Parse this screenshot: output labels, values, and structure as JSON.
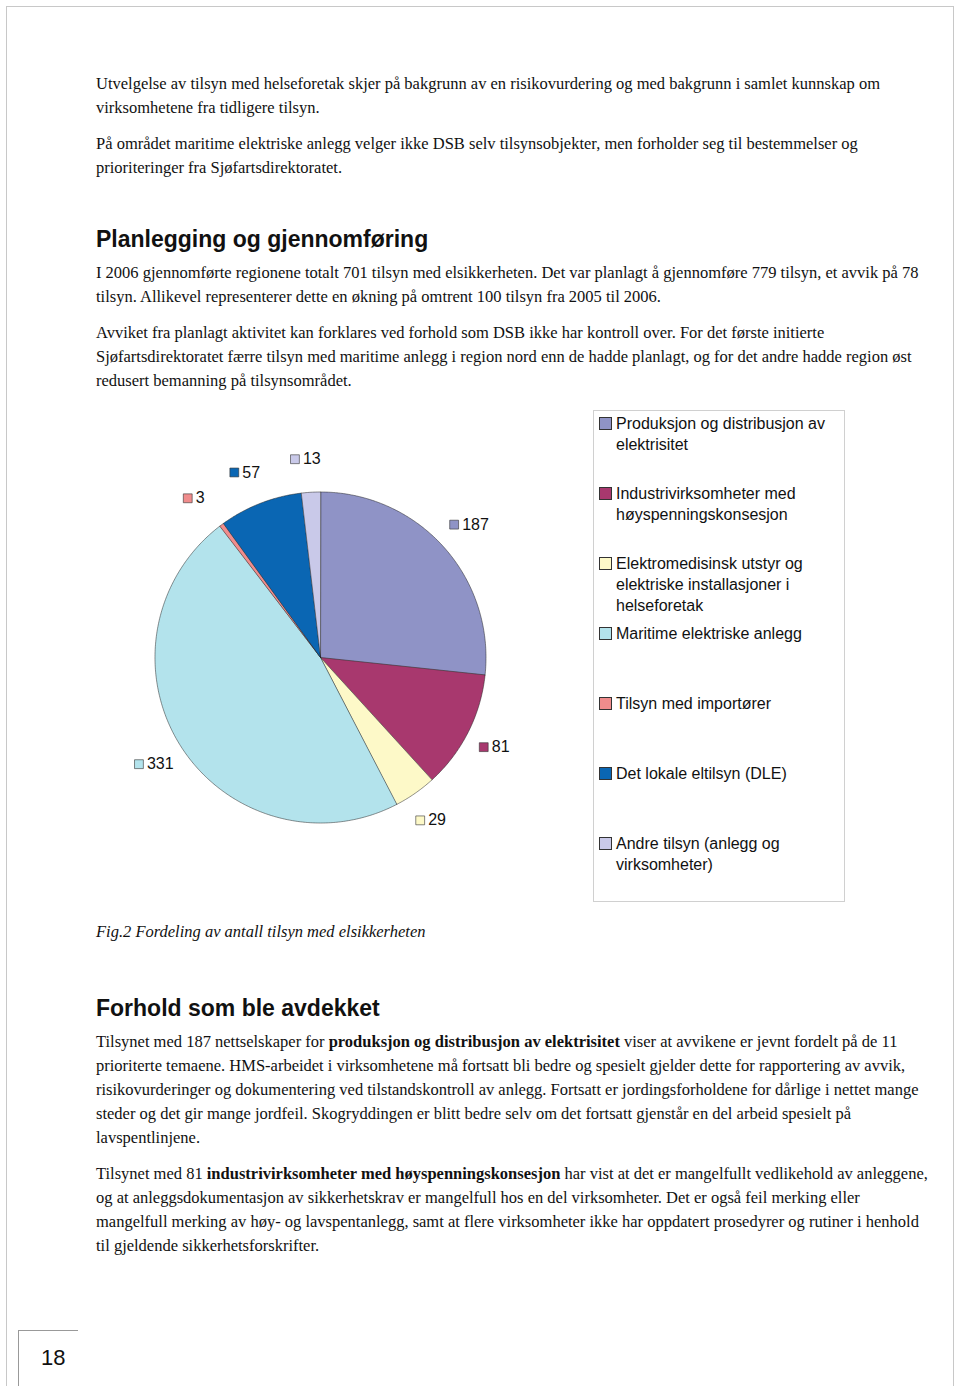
{
  "intro": [
    "Utvelgelse av tilsyn med helseforetak skjer på bakgrunn av en risikovurdering og med bakgrunn i samlet kunnskap om virksomhetene fra tidligere tilsyn.",
    "På området maritime elektriske anlegg velger ikke DSB selv tilsynsobjekter, men forholder seg til bestemmelser og prioriteringer fra Sjøfartsdirektoratet."
  ],
  "section1": {
    "heading": "Planlegging og gjennomføring",
    "paragraphs": [
      "I 2006 gjennomførte regionene totalt 701 tilsyn med elsikkerheten. Det var planlagt å gjennomføre 779 tilsyn, et avvik på 78 tilsyn. Allikevel representerer dette en økning på omtrent 100 tilsyn fra 2005 til 2006.",
      "Avviket fra planlagt aktivitet kan forklares ved forhold som DSB ikke har kontroll over. For det første initierte Sjøfartsdirektoratet færre tilsyn med maritime anlegg i region nord enn de hadde planlagt, og for det andre hadde region øst redusert bemanning på tilsynsområdet."
    ]
  },
  "chart_data": {
    "type": "pie",
    "categories": [
      "Produksjon og distribusjon av elektrisitet",
      "Industrivirksomheter med høyspenningskonsesjon",
      "Elektromedisinsk utstyr og elektriske installasjoner i helseforetak",
      "Maritime elektriske anlegg",
      "Tilsyn med importører",
      "Det lokale eltilsyn (DLE)",
      "Andre tilsyn (anlegg og virksomheter)"
    ],
    "values": [
      187,
      81,
      29,
      331,
      3,
      57,
      13
    ],
    "colors": [
      "#8f93c6",
      "#a8386e",
      "#fdf9c8",
      "#b3e3ec",
      "#f08c8c",
      "#0a66b3",
      "#c9c9e9"
    ],
    "data_labels": true,
    "legend": "right"
  },
  "caption": "Fig.2 Fordeling av antall tilsyn med elsikkerheten",
  "section2": {
    "heading": "Forhold som ble avdekket",
    "paragraphs": [
      [
        {
          "text": "Tilsynet med 187 nettselskaper for ",
          "bold": false
        },
        {
          "text": "produksjon og distribusjon av elektrisitet",
          "bold": true
        },
        {
          "text": " viser at avvikene er jevnt fordelt på de 11 prioriterte temaene. HMS-arbeidet i virksomhetene må fortsatt bli bedre og spesielt gjelder dette for rapportering av avvik, risikovurderinger og dokumentering ved tilstandskontroll av anlegg. Fortsatt er jordingsforholdene for dårlige i nettet mange steder og det gir mange jordfeil. Skogryddingen er blitt bedre selv om det fortsatt gjenstår en del arbeid spesielt på lavspentlinjene.",
          "bold": false
        }
      ],
      [
        {
          "text": "Tilsynet med 81 ",
          "bold": false
        },
        {
          "text": "industrivirksomheter med høyspenningskonsesjon",
          "bold": true
        },
        {
          "text": " har vist at det er mangelfullt vedlikehold av anleggene, og at anleggsdokumentasjon av sikkerhetskrav er mangelfull hos en del virksomheter. Det er også feil merking eller mangelfull merking av høy- og lavspentanlegg, samt at flere virksomheter ikke har oppdatert prosedyrer og rutiner i henhold til gjeldende sikkerhetsforskrifter.",
          "bold": false
        }
      ]
    ]
  },
  "page_number": 18
}
